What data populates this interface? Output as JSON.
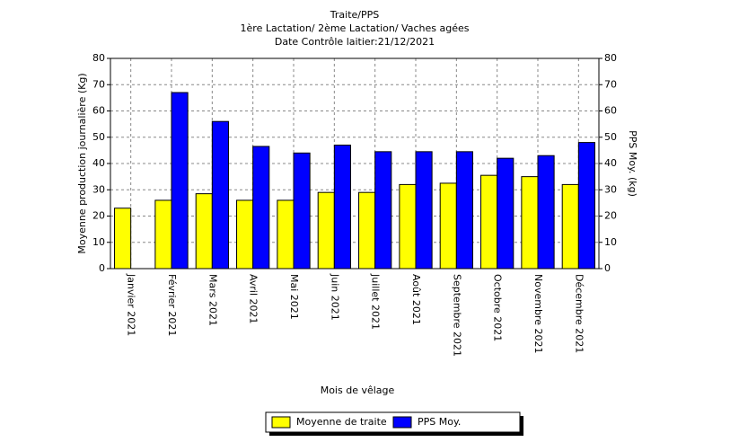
{
  "chart_data": {
    "type": "bar",
    "title": "Traite/PPS",
    "subtitle": "1ère Lactation/ 2ème Lactation/ Vaches agées",
    "subtitle2": "Date Contrôle laitier:21/12/2021",
    "x_label": "Mois de vêlage",
    "y_label": "Moyenne production journalière (Kg)",
    "y2_label": "PPS Moy. (kg)",
    "categories": [
      "Janvier 2021",
      "Février 2021",
      "Mars 2021",
      "Avril 2021",
      "Mai 2021",
      "Juin 2021",
      "Juillet 2021",
      "Août 2021",
      "Septembre 2021",
      "Octobre 2021",
      "Novembre 2021",
      "Décembre 2021"
    ],
    "series": [
      {
        "name": "Moyenne de traite",
        "color": "#ffff00",
        "values": [
          23,
          26,
          28.5,
          26,
          26,
          29,
          29,
          32,
          32.5,
          35.5,
          35,
          32
        ]
      },
      {
        "name": "PPS Moy.",
        "color": "#0000ff",
        "axis": "y2",
        "values": [
          0,
          67,
          56,
          46.5,
          44,
          47,
          44.5,
          44.5,
          44.5,
          42,
          43,
          48
        ]
      }
    ],
    "ylim": [
      0,
      80
    ],
    "yticks": [
      0,
      10,
      20,
      30,
      40,
      50,
      60,
      70,
      80
    ],
    "y2lim": [
      0,
      80
    ],
    "y2ticks": [
      0,
      10,
      20,
      30,
      40,
      50,
      60,
      70,
      80
    ],
    "grid": true
  }
}
